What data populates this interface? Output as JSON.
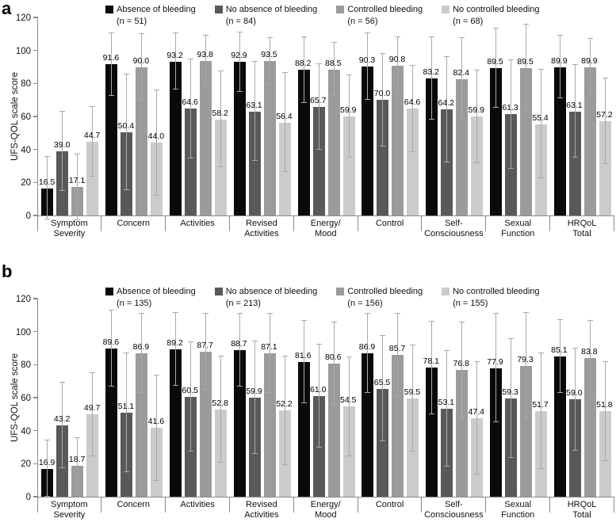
{
  "figure_title": "",
  "ylabel": "UFS-QOL scale score",
  "chart_data": [
    {
      "type": "bar",
      "panel_label": "a",
      "title": "",
      "xlabel": "",
      "ylabel": "UFS-QOL scale score",
      "ylim": [
        0,
        120
      ],
      "yticks": [
        0,
        20,
        40,
        60,
        80,
        100,
        120
      ],
      "grid": false,
      "legend_position": "top",
      "error_bars": true,
      "categories": [
        [
          "Symptom",
          "Severity"
        ],
        [
          "Concern"
        ],
        [
          "Activities"
        ],
        [
          "Revised",
          "Activities"
        ],
        [
          "Energy/",
          "Mood"
        ],
        [
          "Control"
        ],
        [
          "Self-",
          "Consciousness"
        ],
        [
          "Sexual",
          "Function"
        ],
        [
          "HRQoL",
          "Total"
        ]
      ],
      "series": [
        {
          "name": "Absence of bleeding",
          "n_label": "(n = 51)",
          "color": "#0a0a0a",
          "values": [
            16.5,
            91.6,
            93.2,
            92.9,
            88.2,
            90.3,
            83.2,
            89.5,
            89.9
          ],
          "err": [
            19,
            19,
            17,
            18,
            20,
            20,
            25,
            24,
            19
          ]
        },
        {
          "name": "No absence of bleeding",
          "n_label": "(n = 84)",
          "color": "#595959",
          "values": [
            39.0,
            50.4,
            64.6,
            63.1,
            65.7,
            70.0,
            64.2,
            61.3,
            63.1
          ],
          "err": [
            24,
            35,
            30,
            30,
            26,
            28,
            32,
            33,
            28
          ]
        },
        {
          "name": "Controlled bleeding",
          "n_label": "(n = 56)",
          "color": "#9b9b9b",
          "values": [
            17.1,
            90.0,
            93.8,
            93.5,
            88.5,
            90.8,
            82.4,
            89.5,
            89.9
          ],
          "err": [
            20,
            20,
            15,
            14,
            16,
            17,
            25,
            26,
            17
          ]
        },
        {
          "name": "No controlled bleeding",
          "n_label": "(n = 68)",
          "color": "#cbcbcb",
          "values": [
            44.7,
            44.0,
            58.2,
            56.4,
            59.9,
            64.6,
            59.9,
            55.4,
            57.2
          ],
          "err": [
            21,
            32,
            29,
            30,
            25,
            26,
            28,
            33,
            26
          ]
        }
      ]
    },
    {
      "type": "bar",
      "panel_label": "b",
      "title": "",
      "xlabel": "",
      "ylabel": "UFS-QOL scale score",
      "ylim": [
        0,
        120
      ],
      "yticks": [
        0,
        20,
        40,
        60,
        80,
        100,
        120
      ],
      "grid": false,
      "legend_position": "top",
      "error_bars": true,
      "categories": [
        [
          "Symptom",
          "Severity"
        ],
        [
          "Concern"
        ],
        [
          "Activities"
        ],
        [
          "Revised",
          "Activities"
        ],
        [
          "Energy/",
          "Mood"
        ],
        [
          "Control"
        ],
        [
          "Self-",
          "Consciousness"
        ],
        [
          "Sexual",
          "Function"
        ],
        [
          "HRQoL",
          "Total"
        ]
      ],
      "series": [
        {
          "name": "Absence of bleeding",
          "n_label": "(n = 135)",
          "color": "#0a0a0a",
          "values": [
            16.9,
            89.6,
            89.2,
            88.7,
            81.6,
            86.9,
            78.1,
            77.9,
            85.1
          ],
          "err": [
            17,
            23,
            22,
            22,
            25,
            24,
            28,
            33,
            22
          ]
        },
        {
          "name": "No absence of bleeding",
          "n_label": "(n = 213)",
          "color": "#595959",
          "values": [
            43.2,
            51.1,
            60.5,
            59.9,
            61.0,
            65.5,
            53.1,
            59.3,
            59.0
          ],
          "err": [
            26,
            36,
            33,
            34,
            31,
            32,
            35,
            36,
            31
          ]
        },
        {
          "name": "Controlled bleeding",
          "n_label": "(n = 156)",
          "color": "#9b9b9b",
          "values": [
            18.7,
            86.9,
            87.7,
            87.1,
            80.6,
            85.7,
            76.8,
            79.3,
            83.8
          ],
          "err": [
            17,
            24,
            23,
            24,
            25,
            25,
            29,
            32,
            23
          ]
        },
        {
          "name": "No controlled bleeding",
          "n_label": "(n = 155)",
          "color": "#cbcbcb",
          "values": [
            49.7,
            41.6,
            52.8,
            52.2,
            54.5,
            59.5,
            47.4,
            51.7,
            51.8
          ],
          "err": [
            25,
            32,
            32,
            33,
            30,
            32,
            34,
            35,
            30
          ]
        }
      ]
    }
  ]
}
